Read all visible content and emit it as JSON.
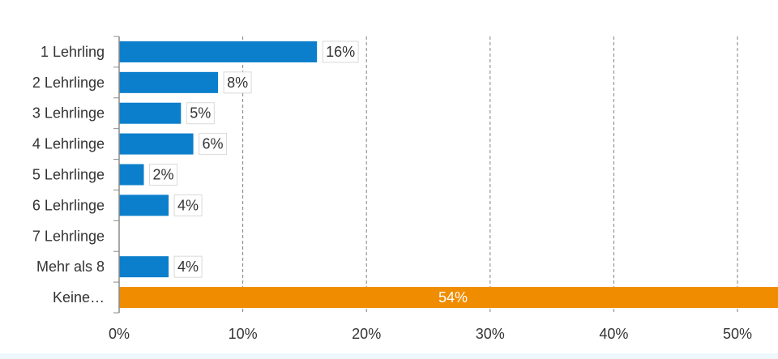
{
  "chart_data": {
    "type": "bar",
    "orientation": "horizontal",
    "categories": [
      "1 Lehrling",
      "2 Lehrlinge",
      "3 Lehrlinge",
      "4 Lehrlinge",
      "5 Lehrlinge",
      "6 Lehrlinge",
      "7 Lehrlinge",
      "Mehr als 8",
      "Keine…"
    ],
    "values": [
      16,
      8,
      5,
      6,
      2,
      4,
      0,
      4,
      54
    ],
    "data_labels": [
      "16%",
      "8%",
      "5%",
      "6%",
      "2%",
      "4%",
      "",
      "4%",
      "54%"
    ],
    "xlim": [
      0,
      50
    ],
    "x_ticks": [
      0,
      10,
      20,
      30,
      40,
      50
    ],
    "x_tick_labels": [
      "0%",
      "10%",
      "20%",
      "30%",
      "40%",
      "50%"
    ],
    "grid": "vertical-dashed",
    "legend": "none",
    "colors": {
      "bar": "#0b7fcb",
      "highlight_bar": "#f08c00",
      "grid": "#7f7f7f",
      "axis": "#8c8c8c",
      "label_box": "#d9d9d9"
    },
    "highlight_index": 8
  }
}
